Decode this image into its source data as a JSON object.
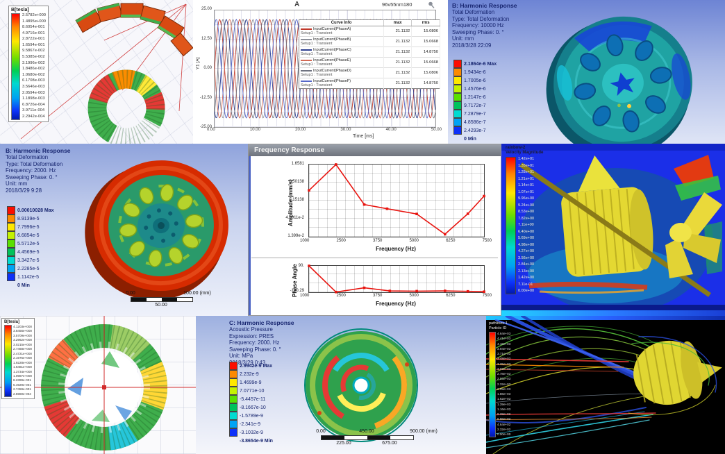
{
  "colors": {
    "ansys_bands": [
      "#fb0d00",
      "#fc8a00",
      "#ffe800",
      "#c4f201",
      "#59e000",
      "#00c25c",
      "#00dbd1",
      "#00a3f4",
      "#0d31f9"
    ],
    "accent_red": "#e8140f",
    "cfd_background": "#1b2fe8"
  },
  "panels": {
    "maxwell_torus": {
      "legend_title": "B[tesla]",
      "values": [
        "2.5782e+000",
        "1.4895e+000",
        "8.6054e-001",
        "4.9716e-001",
        "2.8722e-001",
        "1.6594e-001",
        "9.5867e-002",
        "5.5385e-002",
        "3.1996e-002",
        "1.8486e-002",
        "1.0680e-002",
        "6.1708e-003",
        "3.5646e-003",
        "2.0594e-003",
        "1.1898e-003",
        "6.8726e-004",
        "3.9711e-004",
        "2.2942e-004"
      ]
    },
    "harmonic_10000": {
      "title": "B: Harmonic Response",
      "lines": [
        "Total Deformation",
        "Type: Total Deformation",
        "Frequency: 10000 Hz",
        "Sweeping Phase: 0. °",
        "Unit: mm",
        "2018/3/28 22:09"
      ],
      "scale": [
        "2.1864e-6 Max",
        "1.9434e-6",
        "1.7005e-6",
        "1.4576e-6",
        "1.2147e-6",
        "9.7172e-7",
        "7.2879e-7",
        "4.8586e-7",
        "2.4293e-7",
        "0 Min"
      ]
    },
    "harmonic_2000": {
      "title": "B: Harmonic Response",
      "lines": [
        "Total Deformation",
        "Type: Total Deformation",
        "Frequency: 2000. Hz",
        "Sweeping Phase: 0. °",
        "Unit: mm",
        "2018/3/29 9:28"
      ],
      "scale": [
        "0.00010028 Max",
        "8.9139e-5",
        "7.7996e-5",
        "6.6854e-5",
        "5.5712e-5",
        "4.4569e-5",
        "3.3427e-5",
        "2.2285e-5",
        "1.1142e-5",
        "0 Min"
      ],
      "ruler": {
        "top_left": "0.00",
        "top_right": "100.00 (mm)",
        "bottom_center": "50.00"
      }
    },
    "freq_response_window": {
      "title": "Frequency Response"
    },
    "cfd_contour": {
      "legend_line1": "rainbow-2",
      "legend_line2": "Velocity Magnitude",
      "scale": [
        "1.42e+01",
        "1.35e+01",
        "1.28e+01",
        "1.21e+01",
        "1.14e+01",
        "1.07e+01",
        "9.96e+00",
        "9.24e+00",
        "8.53e+00",
        "7.82e+00",
        "7.11e+00",
        "6.40e+00",
        "5.69e+00",
        "4.98e+00",
        "4.27e+00",
        "3.56e+00",
        "2.84e+00",
        "2.13e+00",
        "1.42e+00",
        "7.11e-01",
        "0.00e+00"
      ]
    },
    "maxwell_ring": {
      "legend_title": "B[tesla]",
      "values": [
        "4.1203e+000",
        "3.8456e+000",
        "3.5709e+000",
        "3.2962e+000",
        "3.0215e+000",
        "2.7468e+000",
        "2.4721e+000",
        "2.1975e+000",
        "1.9228e+000",
        "1.6481e+000",
        "1.3734e+000",
        "1.0987e+000",
        "8.2399e-001",
        "5.4929e-001",
        "2.7459e-001",
        "2.5980e-004"
      ]
    },
    "acoustic": {
      "title": "C: Harmonic Response",
      "lines": [
        "Acoustic Pressure",
        "Expression: PRES",
        "Frequency: 2000. Hz",
        "Sweeping Phase: 0. °",
        "Unit: MPa",
        "2018/3/29 0:43"
      ],
      "scale": [
        "2.9942e-9 Max",
        "2.232e-9",
        "1.4699e-9",
        "7.0771e-10",
        "-5.4457e-11",
        "-8.1667e-10",
        "-1.5789e-9",
        "-2.341e-9",
        "-3.1032e-9",
        "-3.8654e-9 Min"
      ],
      "ruler": {
        "t0": "0.00",
        "t450": "450.00",
        "t900": "900.00 (mm)",
        "b225": "225.00",
        "b675": "675.00"
      }
    },
    "pathlines": {
      "legend_line1": "pathlines-1",
      "legend_line2": "Particle ID",
      "scale": [
        "4.64e+03",
        "4.41e+03",
        "4.18e+03",
        "3.94e+03",
        "3.71e+03",
        "3.48e+03",
        "3.25e+03",
        "3.02e+03",
        "2.78e+03",
        "2.55e+03",
        "2.32e+03",
        "2.09e+03",
        "1.86e+03",
        "1.62e+03",
        "1.39e+03",
        "1.16e+03",
        "9.28e+02",
        "6.96e+02",
        "4.64e+02",
        "2.32e+02",
        "0.00e+00"
      ]
    }
  },
  "chart_data": [
    {
      "type": "line",
      "id": "phase-currents",
      "plot_label": "A",
      "model_label": "96v55nm180",
      "xlabel": "Time [ms]",
      "ylabel": "Y1 [A]",
      "xlim": [
        0,
        50
      ],
      "ylim": [
        25,
        -25
      ],
      "xtick_labels": [
        "0.00",
        "10.00",
        "20.00",
        "30.00",
        "40.00",
        "50.00"
      ],
      "ytick_labels": [
        "25.00",
        "12.50",
        "0.00",
        "-12.50",
        "-25.00"
      ],
      "waveform": {
        "amplitude": 21.1132,
        "period_ms": 4.545
      },
      "legend_headers": [
        "Curve Info",
        "max",
        "rms"
      ],
      "series": [
        {
          "name": "InputCurrent(PhaseA)",
          "setup": "Setup1 : Transient",
          "max": "21.1132",
          "rms": "15.0806",
          "phase_deg": 0,
          "color": "#c0392b"
        },
        {
          "name": "InputCurrent(PhaseB)",
          "setup": "Setup1 : Transient",
          "max": "21.1132",
          "rms": "15.0668",
          "phase_deg": 120,
          "color": "#8d9099"
        },
        {
          "name": "InputCurrent(PhaseC)",
          "setup": "Setup1 : Transient",
          "max": "21.1132",
          "rms": "14.8750",
          "phase_deg": 240,
          "color": "#2d3f8f"
        },
        {
          "name": "InputCurrent(PhaseE)",
          "setup": "Setup1 : Transient",
          "max": "21.1132",
          "rms": "15.0668",
          "phase_deg": 180,
          "color": "#d26a55"
        },
        {
          "name": "InputCurrent(PhaseD)",
          "setup": "Setup1 : Transient",
          "max": "21.1132",
          "rms": "15.0806",
          "phase_deg": 300,
          "color": "#6f7380"
        },
        {
          "name": "InputCurrent(PhaseF)",
          "setup": "Setup1 : Transient",
          "max": "21.1132",
          "rms": "14.8750",
          "phase_deg": 60,
          "color": "#5668c9"
        }
      ]
    },
    {
      "type": "line",
      "id": "amplitude-response",
      "ylabel": "Amplitude (mm/s)",
      "xlabel": "Frequency (Hz)",
      "yscale": "log",
      "xlim": [
        1000,
        7500
      ],
      "ylim": [
        1.6581,
        0.01399
      ],
      "ytick_labels": [
        "1.6581",
        "0.50138",
        "0.15138",
        "4.6011e-2",
        "1.399e-2"
      ],
      "xtick_labels": [
        "1000",
        "2500",
        "3750",
        "5000",
        "6250",
        "7500"
      ],
      "color": "#e8140f",
      "points": [
        [
          1000,
          0.3
        ],
        [
          2000,
          1.6581
        ],
        [
          3050,
          0.118
        ],
        [
          3900,
          0.089
        ],
        [
          5000,
          0.063
        ],
        [
          6050,
          0.0165
        ],
        [
          6900,
          0.064
        ],
        [
          7500,
          0.205
        ]
      ]
    },
    {
      "type": "line",
      "id": "phase-angle",
      "ylabel": "Phase Angle",
      "xlabel": "Frequency (Hz)",
      "yscale": "linear",
      "xlim": [
        1000,
        7500
      ],
      "ylim": [
        90,
        -160.29
      ],
      "ytick_labels": [
        "90.",
        "-160.29"
      ],
      "xtick_labels": [
        "1000",
        "2500",
        "3750",
        "5000",
        "6250",
        "7500"
      ],
      "color": "#e8140f",
      "points": [
        [
          1000,
          90
        ],
        [
          2000,
          -158
        ],
        [
          3050,
          -118
        ],
        [
          4000,
          -148
        ],
        [
          5000,
          -150
        ],
        [
          6050,
          -147
        ],
        [
          6900,
          -152
        ],
        [
          7500,
          -155
        ]
      ]
    }
  ]
}
